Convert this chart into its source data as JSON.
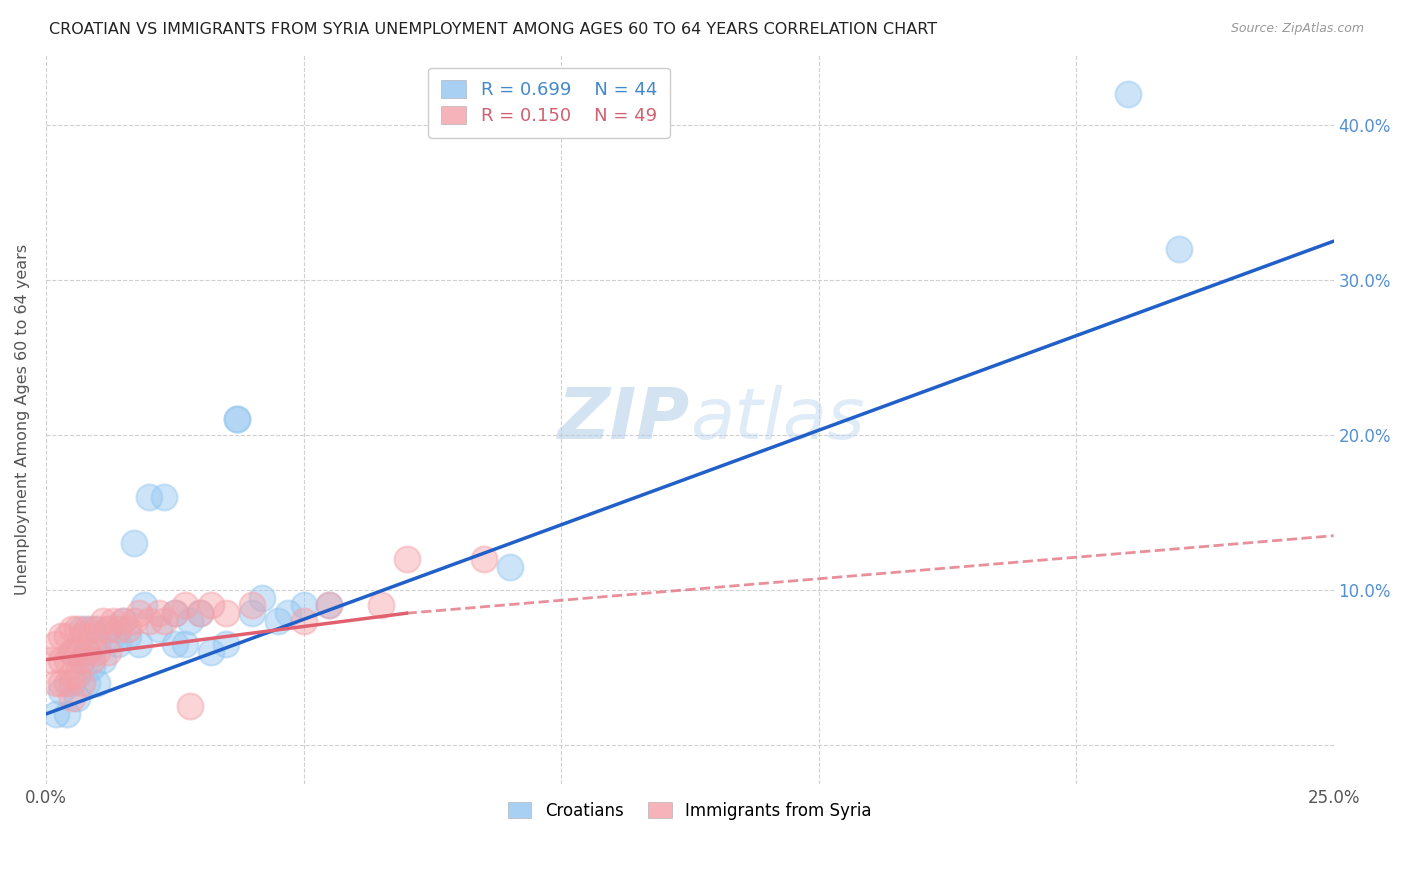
{
  "title": "CROATIAN VS IMMIGRANTS FROM SYRIA UNEMPLOYMENT AMONG AGES 60 TO 64 YEARS CORRELATION CHART",
  "source": "Source: ZipAtlas.com",
  "ylabel": "Unemployment Among Ages 60 to 64 years",
  "xlim": [
    0.0,
    0.25
  ],
  "ylim": [
    -0.025,
    0.445
  ],
  "xticks": [
    0.0,
    0.05,
    0.1,
    0.15,
    0.2,
    0.25
  ],
  "xticklabels": [
    "0.0%",
    "",
    "",
    "",
    "",
    "25.0%"
  ],
  "yticks": [
    0.0,
    0.1,
    0.2,
    0.3,
    0.4
  ],
  "yticklabels_right": [
    "",
    "10.0%",
    "20.0%",
    "30.0%",
    "40.0%"
  ],
  "legend_R_blue": "0.699",
  "legend_N_blue": "44",
  "legend_R_pink": "0.150",
  "legend_N_pink": "49",
  "legend_label_blue": "Croatians",
  "legend_label_pink": "Immigrants from Syria",
  "watermark": "ZIPatlas",
  "blue_color": "#92c5f0",
  "pink_color": "#f4a0a8",
  "blue_line_color": "#2060c8",
  "pink_line_color": "#e06070",
  "blue_scatter": [
    [
      0.002,
      0.02
    ],
    [
      0.003,
      0.035
    ],
    [
      0.004,
      0.02
    ],
    [
      0.005,
      0.04
    ],
    [
      0.005,
      0.06
    ],
    [
      0.006,
      0.03
    ],
    [
      0.007,
      0.055
    ],
    [
      0.007,
      0.075
    ],
    [
      0.008,
      0.04
    ],
    [
      0.008,
      0.06
    ],
    [
      0.009,
      0.05
    ],
    [
      0.009,
      0.075
    ],
    [
      0.01,
      0.04
    ],
    [
      0.01,
      0.065
    ],
    [
      0.011,
      0.055
    ],
    [
      0.012,
      0.075
    ],
    [
      0.013,
      0.07
    ],
    [
      0.014,
      0.065
    ],
    [
      0.015,
      0.08
    ],
    [
      0.016,
      0.07
    ],
    [
      0.017,
      0.13
    ],
    [
      0.018,
      0.065
    ],
    [
      0.019,
      0.09
    ],
    [
      0.02,
      0.16
    ],
    [
      0.022,
      0.075
    ],
    [
      0.023,
      0.16
    ],
    [
      0.025,
      0.065
    ],
    [
      0.025,
      0.085
    ],
    [
      0.027,
      0.065
    ],
    [
      0.028,
      0.08
    ],
    [
      0.03,
      0.085
    ],
    [
      0.032,
      0.06
    ],
    [
      0.035,
      0.065
    ],
    [
      0.037,
      0.21
    ],
    [
      0.037,
      0.21
    ],
    [
      0.04,
      0.085
    ],
    [
      0.042,
      0.095
    ],
    [
      0.045,
      0.08
    ],
    [
      0.047,
      0.085
    ],
    [
      0.05,
      0.09
    ],
    [
      0.055,
      0.09
    ],
    [
      0.09,
      0.115
    ],
    [
      0.21,
      0.42
    ],
    [
      0.22,
      0.32
    ]
  ],
  "pink_scatter": [
    [
      0.001,
      0.055
    ],
    [
      0.002,
      0.065
    ],
    [
      0.002,
      0.04
    ],
    [
      0.003,
      0.07
    ],
    [
      0.003,
      0.055
    ],
    [
      0.003,
      0.04
    ],
    [
      0.004,
      0.07
    ],
    [
      0.004,
      0.055
    ],
    [
      0.004,
      0.04
    ],
    [
      0.005,
      0.075
    ],
    [
      0.005,
      0.06
    ],
    [
      0.005,
      0.045
    ],
    [
      0.005,
      0.03
    ],
    [
      0.006,
      0.075
    ],
    [
      0.006,
      0.06
    ],
    [
      0.006,
      0.045
    ],
    [
      0.007,
      0.07
    ],
    [
      0.007,
      0.055
    ],
    [
      0.007,
      0.04
    ],
    [
      0.008,
      0.075
    ],
    [
      0.008,
      0.06
    ],
    [
      0.009,
      0.07
    ],
    [
      0.009,
      0.055
    ],
    [
      0.01,
      0.075
    ],
    [
      0.01,
      0.06
    ],
    [
      0.011,
      0.08
    ],
    [
      0.012,
      0.075
    ],
    [
      0.012,
      0.06
    ],
    [
      0.013,
      0.08
    ],
    [
      0.014,
      0.075
    ],
    [
      0.015,
      0.08
    ],
    [
      0.016,
      0.075
    ],
    [
      0.017,
      0.08
    ],
    [
      0.018,
      0.085
    ],
    [
      0.02,
      0.08
    ],
    [
      0.022,
      0.085
    ],
    [
      0.023,
      0.08
    ],
    [
      0.025,
      0.085
    ],
    [
      0.027,
      0.09
    ],
    [
      0.028,
      0.025
    ],
    [
      0.03,
      0.085
    ],
    [
      0.032,
      0.09
    ],
    [
      0.035,
      0.085
    ],
    [
      0.04,
      0.09
    ],
    [
      0.05,
      0.08
    ],
    [
      0.055,
      0.09
    ],
    [
      0.065,
      0.09
    ],
    [
      0.07,
      0.12
    ],
    [
      0.085,
      0.12
    ]
  ],
  "blue_line_pts": [
    [
      0.0,
      0.02
    ],
    [
      0.25,
      0.325
    ]
  ],
  "pink_line_solid_pts": [
    [
      0.0,
      0.055
    ],
    [
      0.07,
      0.085
    ]
  ],
  "pink_line_dashed_pts": [
    [
      0.07,
      0.085
    ],
    [
      0.25,
      0.135
    ]
  ],
  "figsize": [
    14.06,
    8.92
  ],
  "dpi": 100
}
